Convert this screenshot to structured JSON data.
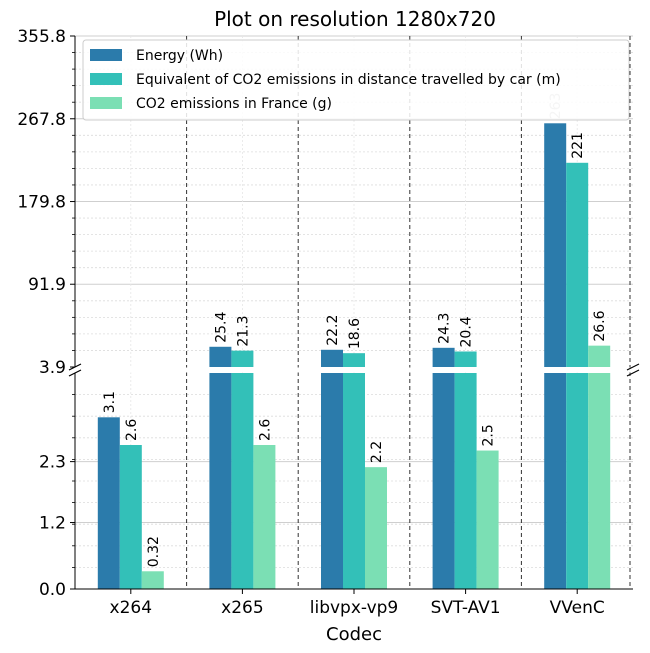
{
  "chart_data": {
    "type": "bar",
    "title": "Plot on resolution 1280x720",
    "xlabel": "Codec",
    "ylabel": "",
    "categories": [
      "x264",
      "x265",
      "libvpx-vp9",
      "SVT-AV1",
      "VVenC"
    ],
    "series": [
      {
        "name": "Energy (Wh)",
        "color": "#2b7bab",
        "values": [
          3.1,
          25.4,
          22.2,
          24.3,
          263
        ],
        "labels": [
          "3.1",
          "25.4",
          "22.2",
          "24.3",
          "263"
        ]
      },
      {
        "name": "Equivalent of CO2 emissions in distance travelled by car (m)",
        "color": "#33c0b8",
        "values": [
          2.6,
          21.3,
          18.6,
          20.4,
          221
        ],
        "labels": [
          "2.6",
          "21.3",
          "18.6",
          "20.4",
          "221"
        ]
      },
      {
        "name": "CO2 emissions in France (g)",
        "color": "#7bdfb4",
        "values": [
          0.32,
          2.6,
          2.2,
          2.5,
          26.6
        ],
        "labels": [
          "0.32",
          "2.6",
          "2.2",
          "2.5",
          "26.6"
        ]
      }
    ],
    "axis": {
      "broken": true,
      "lower_ylim": [
        0,
        3.9
      ],
      "upper_ylim": [
        3.9,
        355.8
      ],
      "lower_ticks": [
        "0.0",
        "1.2",
        "2.3",
        "3.9"
      ],
      "lower_tick_values": [
        0,
        1.2,
        2.3,
        3.9
      ],
      "upper_ticks": [
        "91.9",
        "179.8",
        "267.8",
        "355.8"
      ],
      "upper_tick_values": [
        91.9,
        179.8,
        267.8,
        355.8
      ]
    },
    "grid": true,
    "legend": "top-left"
  }
}
